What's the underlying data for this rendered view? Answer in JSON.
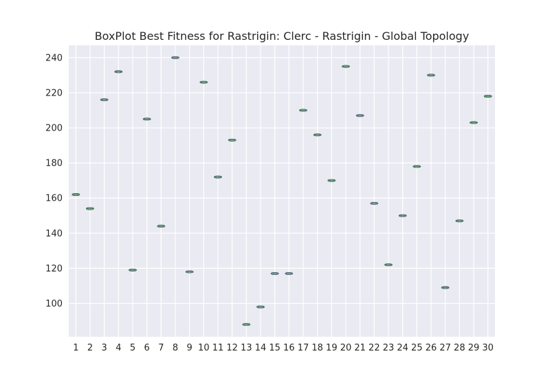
{
  "chart_data": {
    "type": "box",
    "title": "BoxPlot Best Fitness for Rastrigin: Clerc - Rastrigin - Global Topology",
    "xlabel": "",
    "ylabel": "",
    "categories": [
      "1",
      "2",
      "3",
      "4",
      "5",
      "6",
      "7",
      "8",
      "9",
      "10",
      "11",
      "12",
      "13",
      "14",
      "15",
      "16",
      "17",
      "18",
      "19",
      "20",
      "21",
      "22",
      "23",
      "24",
      "25",
      "26",
      "27",
      "28",
      "29",
      "30"
    ],
    "values": [
      162,
      154,
      216,
      232,
      119,
      205,
      144,
      240,
      118,
      226,
      172,
      193,
      88,
      98,
      117,
      117,
      210,
      196,
      170,
      235,
      207,
      157,
      122,
      150,
      178,
      230,
      109,
      147,
      203,
      218
    ],
    "ylim": [
      81,
      247
    ],
    "yticks": [
      100,
      120,
      140,
      160,
      180,
      200,
      220,
      240
    ],
    "grid": true,
    "colors": {
      "plot_bg": "#eaeaf2",
      "grid": "#ffffff",
      "median": "#4c8c5c",
      "box": "#4a5a72"
    }
  }
}
